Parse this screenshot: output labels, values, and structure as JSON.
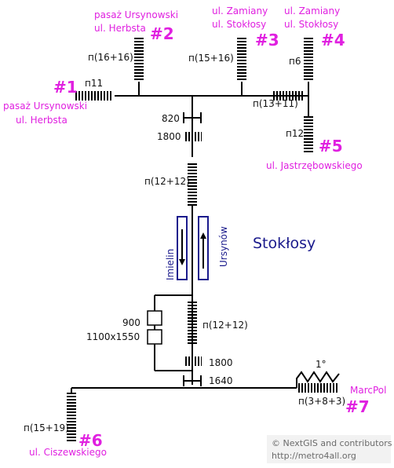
{
  "station_name": "Stokłosy",
  "colors": {
    "line": "#000000",
    "exit": "#e020e0",
    "station": "#1a1a8c",
    "credit": "#6b6b6b",
    "credit_bg": "#f2f2f2"
  },
  "exits": [
    {
      "number": "#1",
      "street_line1": "pasaż Ursynowski",
      "street_line2": "ul. Herbsta",
      "stairs": "п11"
    },
    {
      "number": "#2",
      "street_line1": "pasaż Ursynowski",
      "street_line2": "ul. Herbsta",
      "stairs": "п(16+16)"
    },
    {
      "number": "#3",
      "street_line1": "ul. Zamiany",
      "street_line2": "ul. Stokłosy",
      "stairs": "п(15+16)"
    },
    {
      "number": "#4",
      "street_line1": "ul. Zamiany",
      "street_line2": "ul. Stokłosy",
      "stairs": "п6"
    },
    {
      "number": "#5",
      "street_line1": "ul. Jastrzębowskiego",
      "street_line2": "",
      "stairs": "п12"
    },
    {
      "number": "#6",
      "street_line1": "ul. Ciszewskiego",
      "street_line2": "",
      "stairs": "п(15+19)"
    },
    {
      "number": "#7",
      "street_line1": "MarcPol",
      "street_line2": "",
      "stairs": "п(3+8+3)"
    }
  ],
  "labels": {
    "stairs_upper_right": "п(13+11)",
    "width_upper": "820",
    "step_upper": "1800",
    "stairs_upper_platform": "п(12+12)",
    "stairs_lower_platform": "п(12+12)",
    "door_width": "900",
    "door_size": "1100x1550",
    "step_lower": "1800",
    "width_lower": "1640",
    "ramp_angle": "1°"
  },
  "platform": {
    "left_direction": "Imielin",
    "right_direction": "Ursynów"
  },
  "credits": {
    "line1": "© NextGIS and contributors",
    "line2": "http://metro4all.org"
  }
}
